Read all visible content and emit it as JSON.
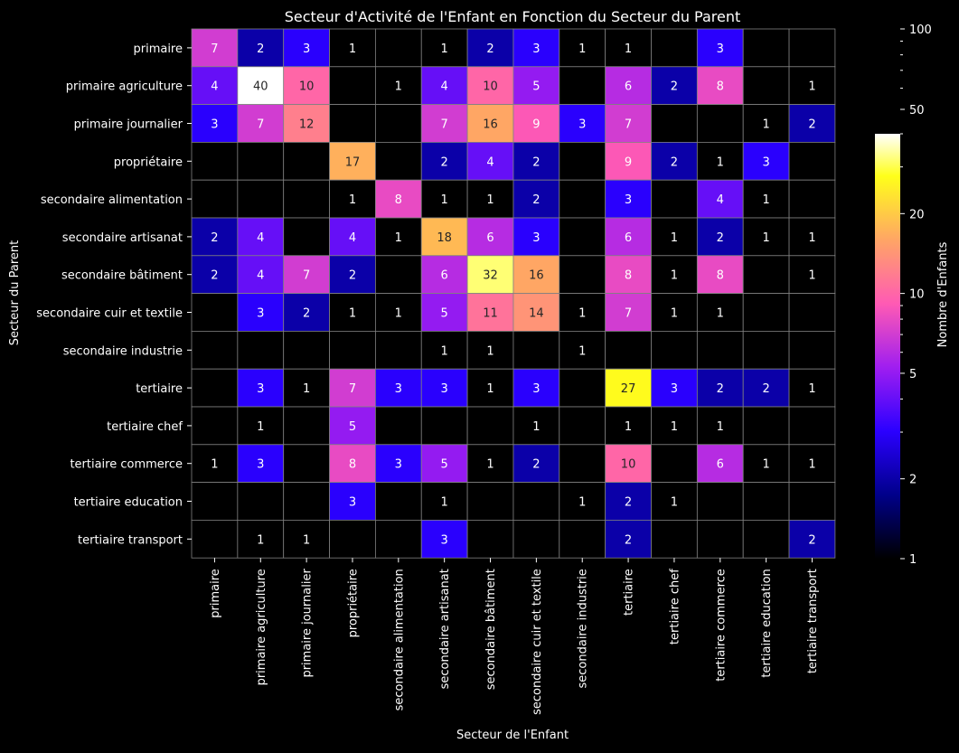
{
  "chart_data": {
    "type": "heatmap",
    "title": "Secteur d'Activité de l'Enfant en Fonction du Secteur du Parent",
    "xlabel": "Secteur de l'Enfant",
    "ylabel": "Secteur du Parent",
    "colorbar_label": "Nombre d'Enfants",
    "colormap": "gnuplot2",
    "color_scale": "log",
    "color_range": [
      1,
      100
    ],
    "colorbar_ticks": [
      "1",
      "2",
      "5",
      "10",
      "20",
      "50",
      "100"
    ],
    "grid": true,
    "annotate": true,
    "x_categories": [
      "primaire",
      "primaire agriculture",
      "primaire journalier",
      "propriétaire",
      "secondaire alimentation",
      "secondaire artisanat",
      "secondaire bâtiment",
      "secondaire cuir et textile",
      "secondaire industrie",
      "tertiaire",
      "tertiaire chef",
      "tertiaire commerce",
      "tertiaire education",
      "tertiaire transport"
    ],
    "y_categories": [
      "primaire ",
      "primaire agriculture",
      "primaire journalier",
      "propriétaire",
      "secondaire alimentation",
      "secondaire artisanat",
      "secondaire bâtiment",
      "secondaire cuir et textile",
      "secondaire industrie",
      "tertiaire ",
      "tertiaire chef",
      "tertiaire commerce",
      "tertiaire education",
      "tertiaire transport"
    ],
    "values": [
      [
        7,
        2,
        3,
        1,
        null,
        1,
        2,
        3,
        1,
        1,
        null,
        3,
        null,
        null
      ],
      [
        4,
        40,
        10,
        null,
        1,
        4,
        10,
        5,
        null,
        6,
        2,
        8,
        null,
        1
      ],
      [
        3,
        7,
        12,
        null,
        null,
        7,
        16,
        9,
        3,
        7,
        null,
        null,
        1,
        2
      ],
      [
        null,
        null,
        null,
        17,
        null,
        2,
        4,
        2,
        null,
        9,
        2,
        1,
        3,
        null
      ],
      [
        null,
        null,
        null,
        1,
        8,
        1,
        1,
        2,
        null,
        3,
        null,
        4,
        1,
        null
      ],
      [
        2,
        4,
        null,
        4,
        1,
        18,
        6,
        3,
        null,
        6,
        1,
        2,
        1,
        1
      ],
      [
        2,
        4,
        7,
        2,
        null,
        6,
        32,
        16,
        null,
        8,
        1,
        8,
        null,
        1
      ],
      [
        null,
        3,
        2,
        1,
        1,
        5,
        11,
        14,
        1,
        7,
        1,
        1,
        null,
        null
      ],
      [
        null,
        null,
        null,
        null,
        null,
        1,
        1,
        null,
        1,
        null,
        null,
        null,
        null,
        null
      ],
      [
        null,
        3,
        1,
        7,
        3,
        3,
        1,
        3,
        null,
        27,
        3,
        2,
        2,
        1
      ],
      [
        null,
        1,
        null,
        5,
        null,
        null,
        null,
        1,
        null,
        1,
        1,
        1,
        null,
        null
      ],
      [
        1,
        3,
        null,
        8,
        3,
        5,
        1,
        2,
        null,
        10,
        null,
        6,
        1,
        1
      ],
      [
        null,
        null,
        null,
        3,
        null,
        1,
        null,
        null,
        1,
        2,
        1,
        null,
        null,
        null
      ],
      [
        null,
        1,
        1,
        null,
        null,
        3,
        null,
        null,
        null,
        2,
        null,
        null,
        null,
        2
      ]
    ]
  }
}
